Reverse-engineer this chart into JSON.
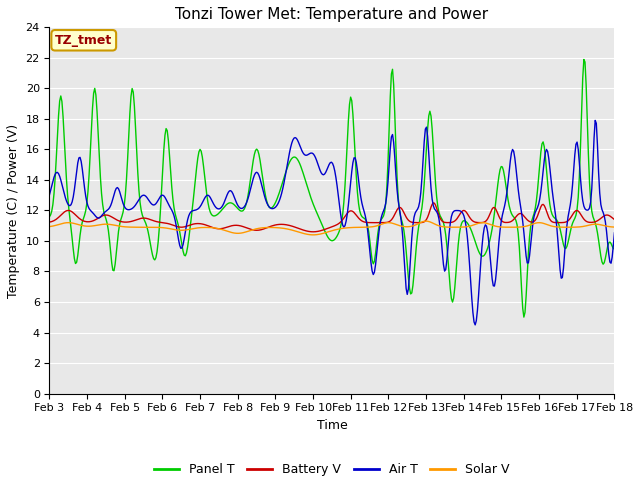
{
  "title": "Tonzi Tower Met: Temperature and Power",
  "xlabel": "Time",
  "ylabel": "Temperature (C) / Power (V)",
  "ylim": [
    0,
    24
  ],
  "yticks": [
    0,
    2,
    4,
    6,
    8,
    10,
    12,
    14,
    16,
    18,
    20,
    22,
    24
  ],
  "xtick_labels": [
    "Feb 3",
    "Feb 4",
    "Feb 5",
    "Feb 6",
    "Feb 7",
    "Feb 8",
    "Feb 9",
    "Feb 10",
    "Feb 11",
    "Feb 12",
    "Feb 13",
    "Feb 14",
    "Feb 15",
    "Feb 16",
    "Feb 17",
    "Feb 18"
  ],
  "legend_labels": [
    "Panel T",
    "Battery V",
    "Air T",
    "Solar V"
  ],
  "legend_colors": [
    "#00cc00",
    "#cc0000",
    "#0000cc",
    "#ff9900"
  ],
  "line_colors": {
    "panel_t": "#00cc00",
    "battery_v": "#cc0000",
    "air_t": "#0000cc",
    "solar_v": "#ff9900"
  },
  "annotation_text": "TZ_tmet",
  "annotation_color": "#990000",
  "annotation_bg": "#ffffcc",
  "annotation_border": "#cc9900",
  "bg_color": "#e8e8e8",
  "title_fontsize": 11,
  "axis_fontsize": 9,
  "tick_fontsize": 8
}
